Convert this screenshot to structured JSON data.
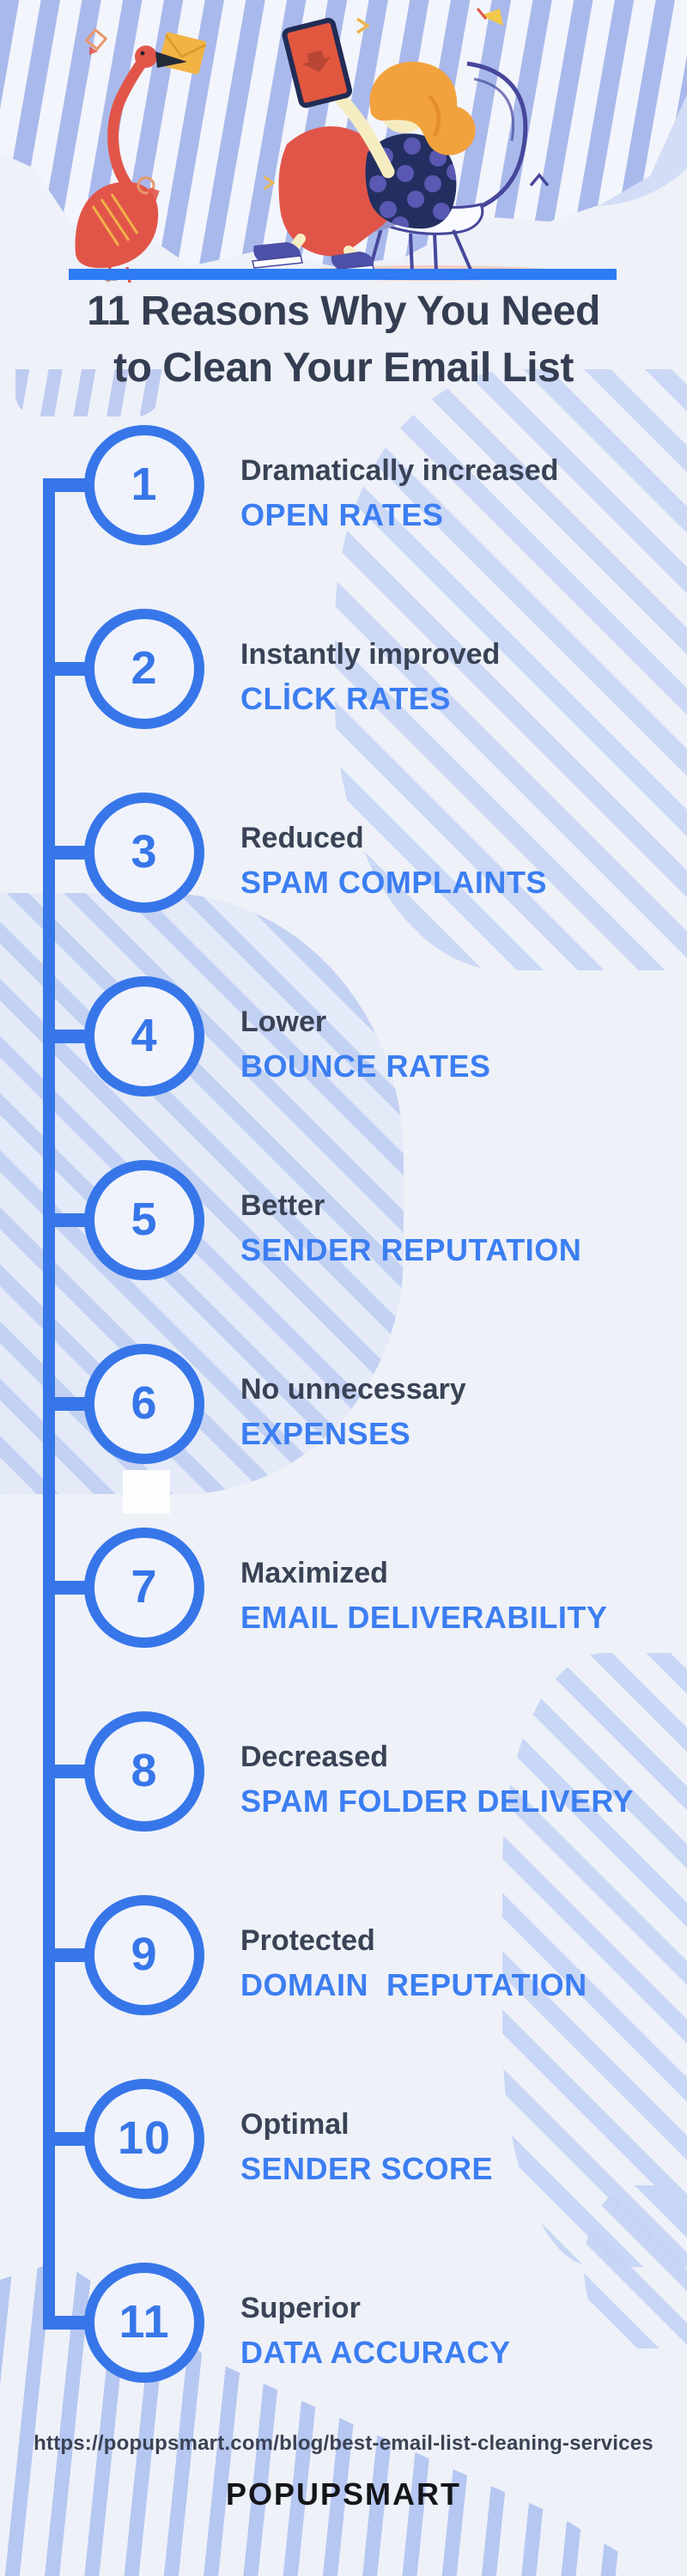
{
  "title": {
    "line1": "11 Reasons Why You Need",
    "line2": "to Clean Your Email List"
  },
  "items": [
    {
      "number": "1",
      "lead": "Dramatically increased",
      "highlight": "OPEN RATES"
    },
    {
      "number": "2",
      "lead": "Instantly improved",
      "highlight": "CLİCK RATES"
    },
    {
      "number": "3",
      "lead": "Reduced",
      "highlight": "SPAM COMPLAINTS"
    },
    {
      "number": "4",
      "lead": "Lower",
      "highlight": "BOUNCE RATES"
    },
    {
      "number": "5",
      "lead": "Better",
      "highlight": "SENDER REPUTATION"
    },
    {
      "number": "6",
      "lead": "No unnecessary",
      "highlight": "EXPENSES"
    },
    {
      "number": "7",
      "lead": "Maximized",
      "highlight": "EMAIL DELIVERABILITY"
    },
    {
      "number": "8",
      "lead": "Decreased",
      "highlight": "SPAM FOLDER DELIVERY"
    },
    {
      "number": "9",
      "lead": "Protected",
      "highlight": "DOMAIN  REPUTATION"
    },
    {
      "number": "10",
      "lead": "Optimal",
      "highlight": "SENDER SCORE"
    },
    {
      "number": "11",
      "lead": "Superior",
      "highlight": "DATA ACCURACY"
    }
  ],
  "footer": {
    "url": "https://popupsmart.com/blog/best-email-list-cleaning-services",
    "brand": "POPUPSMART"
  },
  "colors": {
    "background": "#eef1f8",
    "accent_blue": "#3776e9",
    "highlight_blue": "#3c7ef2",
    "divider_blue": "#2e7cf6",
    "dark_text": "#3a4356",
    "title_text": "#353d52",
    "brand_black": "#141519",
    "stripe_periwinkle": "#a9b9ec",
    "stripe_light": "#c9d7f6",
    "flamingo_coral": "#e15549",
    "envelope_yellow": "#f2b343",
    "hair_orange": "#f2a23d",
    "chair_indigo": "#47479b"
  },
  "illustration": {
    "description": "woman reading tablet in armchair beside flamingo holding yellow envelope"
  }
}
